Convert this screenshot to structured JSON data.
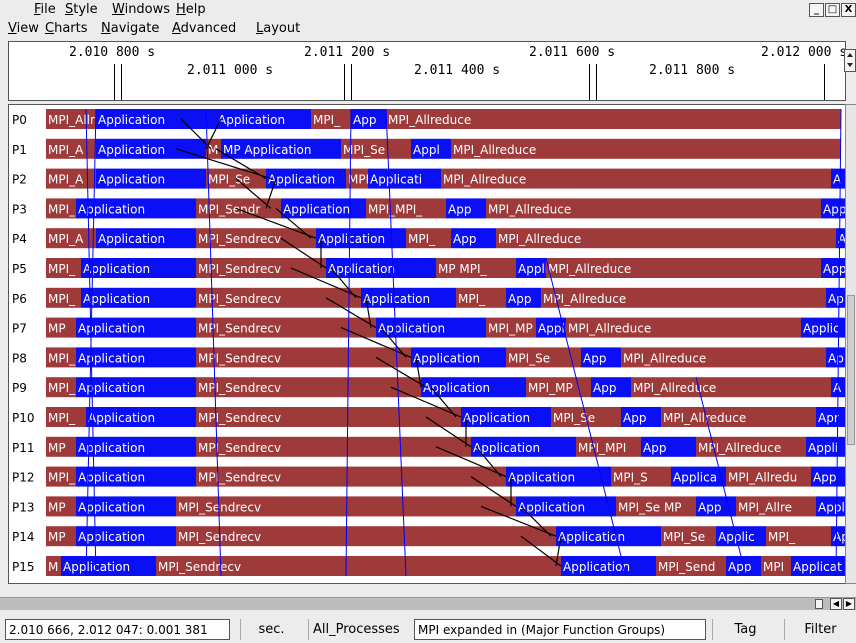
{
  "menubar": {
    "items": [
      "File",
      "Style",
      "Windows",
      "Help"
    ],
    "underline": [
      "F",
      "S",
      "W",
      "H"
    ]
  },
  "menubar2": {
    "items": [
      "View",
      "Charts",
      "Navigate",
      "Advanced",
      "Layout"
    ],
    "underline": [
      "V",
      "C",
      "N",
      "A",
      "L"
    ]
  },
  "window_buttons": [
    "_",
    "□",
    "X"
  ],
  "ruler": {
    "top_labels": [
      "2.010 800 s",
      "2.011 200 s",
      "2.011 600 s",
      "2.012 000 s"
    ],
    "bottom_labels": [
      "2.011 000 s",
      "2.011 400 s",
      "2.011 800 s"
    ]
  },
  "processes": [
    "P0",
    "P1",
    "P2",
    "P3",
    "P4",
    "P5",
    "P6",
    "P7",
    "P8",
    "P9",
    "P10",
    "P11",
    "P12",
    "P13",
    "P14",
    "P15"
  ],
  "colors": {
    "application": "#0a0ff5",
    "mpi": "#9e3a3a",
    "message_line": "#000000",
    "outline": "#0000ff"
  },
  "timeline_segments": [
    [
      [
        "mpi",
        0,
        50,
        "MPI_Allr"
      ],
      [
        "app",
        50,
        170,
        "Application"
      ],
      [
        "app",
        170,
        265,
        "Application"
      ],
      [
        "mpi",
        265,
        305,
        "MPI_"
      ],
      [
        "app",
        305,
        340,
        "App"
      ],
      [
        "mpi",
        340,
        795,
        "MPI_Allreduce"
      ]
    ],
    [
      [
        "mpi",
        0,
        50,
        "MPI_A"
      ],
      [
        "app",
        50,
        160,
        "Application"
      ],
      [
        "mpi",
        160,
        175,
        "M"
      ],
      [
        "app",
        175,
        295,
        "MP Application"
      ],
      [
        "mpi",
        295,
        365,
        "MPI_Se"
      ],
      [
        "app",
        365,
        405,
        "Appl"
      ],
      [
        "mpi",
        405,
        795,
        "MPI_Allreduce"
      ]
    ],
    [
      [
        "mpi",
        0,
        50,
        "MPI_A"
      ],
      [
        "app",
        50,
        160,
        "Application"
      ],
      [
        "mpi",
        160,
        220,
        "MPI_Se"
      ],
      [
        "app",
        220,
        300,
        "Application"
      ],
      [
        "mpi",
        300,
        322,
        "MPI"
      ],
      [
        "app",
        322,
        395,
        "Applicati"
      ],
      [
        "mpi",
        395,
        785,
        "MPI_Allreduce"
      ],
      [
        "app",
        785,
        828,
        "A"
      ]
    ],
    [
      [
        "mpi",
        0,
        30,
        "MPI_"
      ],
      [
        "app",
        30,
        150,
        "Application"
      ],
      [
        "mpi",
        150,
        235,
        "MPI_Sendr"
      ],
      [
        "app",
        235,
        320,
        "Application"
      ],
      [
        "mpi",
        320,
        400,
        "MPI_MPI_"
      ],
      [
        "app",
        400,
        440,
        "App"
      ],
      [
        "mpi",
        440,
        775,
        "MPI_Allreduce"
      ],
      [
        "app",
        775,
        828,
        "App"
      ]
    ],
    [
      [
        "mpi",
        0,
        50,
        "MPI_A"
      ],
      [
        "app",
        50,
        150,
        "Application"
      ],
      [
        "mpi",
        150,
        270,
        "MPI_Sendrecv"
      ],
      [
        "app",
        270,
        360,
        "Application"
      ],
      [
        "mpi",
        360,
        405,
        "MPI_"
      ],
      [
        "app",
        405,
        450,
        "App"
      ],
      [
        "mpi",
        450,
        790,
        "MPI_Allreduce"
      ],
      [
        "app",
        790,
        828,
        "A"
      ]
    ],
    [
      [
        "mpi",
        0,
        35,
        "MPI_"
      ],
      [
        "app",
        35,
        150,
        "Application"
      ],
      [
        "mpi",
        150,
        280,
        "MPI_Sendrecv"
      ],
      [
        "app",
        280,
        390,
        "Application"
      ],
      [
        "mpi",
        390,
        470,
        "MP MPI_"
      ],
      [
        "app",
        470,
        500,
        "Appli"
      ],
      [
        "mpi",
        500,
        775,
        "MPI_Allreduce"
      ],
      [
        "app",
        775,
        828,
        "App"
      ]
    ],
    [
      [
        "mpi",
        0,
        35,
        "MPI_"
      ],
      [
        "app",
        35,
        150,
        "Application"
      ],
      [
        "mpi",
        150,
        315,
        "MPI_Sendrecv"
      ],
      [
        "app",
        315,
        410,
        "Application"
      ],
      [
        "mpi",
        410,
        460,
        "MPI_"
      ],
      [
        "app",
        460,
        495,
        "App"
      ],
      [
        "mpi",
        495,
        780,
        "MPI_Allreduce"
      ],
      [
        "app",
        780,
        828,
        "Ap"
      ]
    ],
    [
      [
        "mpi",
        0,
        30,
        "MP"
      ],
      [
        "app",
        30,
        150,
        "Application"
      ],
      [
        "mpi",
        150,
        330,
        "MPI_Sendrecv"
      ],
      [
        "app",
        330,
        440,
        "Application"
      ],
      [
        "mpi",
        440,
        490,
        "MPI_MP"
      ],
      [
        "app",
        490,
        520,
        "Appli"
      ],
      [
        "mpi",
        520,
        755,
        "MPI_Allreduce"
      ],
      [
        "app",
        755,
        828,
        "Applic"
      ]
    ],
    [
      [
        "mpi",
        0,
        30,
        "MPI_"
      ],
      [
        "app",
        30,
        150,
        "Application"
      ],
      [
        "mpi",
        150,
        365,
        "MPI_Sendrecv"
      ],
      [
        "app",
        365,
        460,
        "Application"
      ],
      [
        "mpi",
        460,
        535,
        "MPI_Se"
      ],
      [
        "app",
        535,
        575,
        "App"
      ],
      [
        "mpi",
        575,
        780,
        "MPI_Allreduce"
      ],
      [
        "app",
        780,
        828,
        "Ap"
      ]
    ],
    [
      [
        "mpi",
        0,
        30,
        "MPI_"
      ],
      [
        "app",
        30,
        150,
        "Application"
      ],
      [
        "mpi",
        150,
        375,
        "MPI_Sendrecv"
      ],
      [
        "app",
        375,
        480,
        "Application"
      ],
      [
        "mpi",
        480,
        545,
        "MPI_MP"
      ],
      [
        "app",
        545,
        585,
        "App"
      ],
      [
        "mpi",
        585,
        785,
        "MPI_Allreduce"
      ],
      [
        "app",
        785,
        828,
        "A"
      ]
    ],
    [
      [
        "mpi",
        0,
        40,
        "MPI_"
      ],
      [
        "app",
        40,
        150,
        "Application"
      ],
      [
        "mpi",
        150,
        415,
        "MPI_Sendrecv"
      ],
      [
        "app",
        415,
        505,
        "Application"
      ],
      [
        "mpi",
        505,
        575,
        "MPI_Se"
      ],
      [
        "app",
        575,
        615,
        "App"
      ],
      [
        "mpi",
        615,
        770,
        "MPI_Allreduce"
      ],
      [
        "app",
        770,
        828,
        "Apr"
      ]
    ],
    [
      [
        "mpi",
        0,
        30,
        "MP"
      ],
      [
        "app",
        30,
        150,
        "Application"
      ],
      [
        "mpi",
        150,
        425,
        "MPI_Sendrecv"
      ],
      [
        "app",
        425,
        530,
        "Application"
      ],
      [
        "mpi",
        530,
        595,
        "MPI_MPI"
      ],
      [
        "app",
        595,
        650,
        "App"
      ],
      [
        "mpi",
        650,
        760,
        "MPI_Allreduce"
      ],
      [
        "app",
        760,
        828,
        "Appli"
      ]
    ],
    [
      [
        "mpi",
        0,
        30,
        "MPI_"
      ],
      [
        "app",
        30,
        150,
        "Application"
      ],
      [
        "mpi",
        150,
        460,
        "MPI_Sendrecv"
      ],
      [
        "app",
        460,
        565,
        "Application"
      ],
      [
        "mpi",
        565,
        625,
        "MPI_S"
      ],
      [
        "app",
        625,
        680,
        "Applica"
      ],
      [
        "mpi",
        680,
        765,
        "MPI_Allredu"
      ],
      [
        "app",
        765,
        828,
        "App"
      ]
    ],
    [
      [
        "mpi",
        0,
        30,
        "MP"
      ],
      [
        "app",
        30,
        130,
        "Application"
      ],
      [
        "mpi",
        130,
        470,
        "MPI_Sendrecv"
      ],
      [
        "app",
        470,
        570,
        "Application"
      ],
      [
        "mpi",
        570,
        650,
        "MPI_Se MP"
      ],
      [
        "app",
        650,
        690,
        "App"
      ],
      [
        "mpi",
        690,
        770,
        "MPI_Allre"
      ],
      [
        "app",
        770,
        828,
        "Applic"
      ]
    ],
    [
      [
        "mpi",
        0,
        30,
        "MP"
      ],
      [
        "app",
        30,
        130,
        "Application"
      ],
      [
        "mpi",
        130,
        510,
        "MPI_Sendrecv"
      ],
      [
        "app",
        510,
        615,
        "Application"
      ],
      [
        "mpi",
        615,
        670,
        "MPI_Se"
      ],
      [
        "app",
        670,
        720,
        "Applic"
      ],
      [
        "mpi",
        720,
        785,
        "MPI_"
      ],
      [
        "app",
        785,
        828,
        "Appli"
      ]
    ],
    [
      [
        "mpi",
        0,
        15,
        "M"
      ],
      [
        "app",
        15,
        110,
        "Application"
      ],
      [
        "mpi",
        110,
        515,
        "MPI_Sendrecv"
      ],
      [
        "app",
        515,
        610,
        "Application"
      ],
      [
        "mpi",
        610,
        680,
        "MPI_Send"
      ],
      [
        "app",
        680,
        715,
        "App"
      ],
      [
        "mpi",
        715,
        745,
        "MPI"
      ],
      [
        "app",
        745,
        828,
        "Applicat"
      ]
    ]
  ],
  "status": {
    "range": "2.010 666, 2.012 047: 0.001 381",
    "unit": "sec.",
    "group": "All_Processes",
    "mode": "MPI expanded in (Major Function Groups)",
    "tag_label": "Tag",
    "filter_label": "Filter"
  }
}
